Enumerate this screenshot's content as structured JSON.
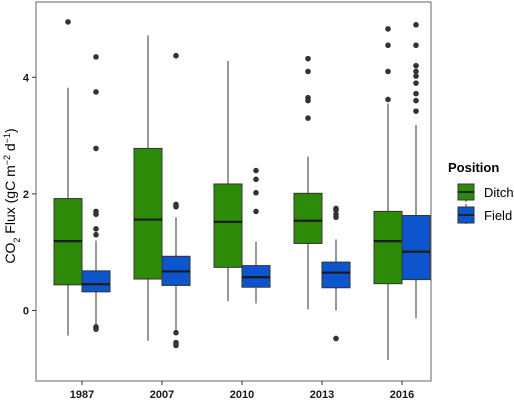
{
  "chart_data": {
    "type": "boxplot",
    "title": "",
    "xlabel": "",
    "ylabel": {
      "prefix": "CO",
      "sub": "2",
      "middle": " Flux (gC m",
      "sup1": "−2",
      "middle2": " d",
      "sup2": "−1",
      "suffix": ")"
    },
    "ylim": [
      -1.25,
      5.2
    ],
    "yticks": [
      0,
      2,
      4
    ],
    "grid": false,
    "legend_position": "right",
    "legend_title": "Position",
    "categories": [
      "1987",
      "2007",
      "2010",
      "2013",
      "2016"
    ],
    "series": [
      {
        "name": "Ditch",
        "color": "#2e8b0a",
        "boxes": [
          {
            "min": -0.43,
            "q1": 0.44,
            "median": 1.19,
            "q3": 1.92,
            "max": 3.82,
            "outliers": [
              4.95
            ]
          },
          {
            "min": -0.52,
            "q1": 0.54,
            "median": 1.56,
            "q3": 2.78,
            "max": 4.72,
            "outliers": []
          },
          {
            "min": 0.16,
            "q1": 0.74,
            "median": 1.52,
            "q3": 2.17,
            "max": 4.28,
            "outliers": []
          },
          {
            "min": 0.02,
            "q1": 1.15,
            "median": 1.54,
            "q3": 2.01,
            "max": 2.64,
            "outliers": [
              3.3,
              3.6,
              3.65,
              4.1,
              4.32
            ]
          },
          {
            "min": -0.85,
            "q1": 0.46,
            "median": 1.19,
            "q3": 1.7,
            "max": 3.55,
            "outliers": [
              3.62,
              4.1,
              4.55,
              4.83
            ]
          }
        ]
      },
      {
        "name": "Field",
        "color": "#0d55cc",
        "boxes": [
          {
            "min": -0.36,
            "q1": 0.32,
            "median": 0.45,
            "q3": 0.68,
            "max": 1.2,
            "outliers": [
              -0.32,
              -0.28,
              1.3,
              1.4,
              1.65,
              1.7,
              2.78,
              3.75,
              4.35
            ]
          },
          {
            "min": -0.33,
            "q1": 0.43,
            "median": 0.67,
            "q3": 0.93,
            "max": 1.6,
            "outliers": [
              -0.38,
              -0.55,
              -0.6,
              1.78,
              1.82,
              4.37
            ]
          },
          {
            "min": 0.12,
            "q1": 0.4,
            "median": 0.57,
            "q3": 0.77,
            "max": 1.18,
            "outliers": [
              1.7,
              2.02,
              2.25,
              2.4
            ]
          },
          {
            "min": 0.0,
            "q1": 0.39,
            "median": 0.65,
            "q3": 0.83,
            "max": 1.22,
            "outliers": [
              -0.48,
              1.6,
              1.65,
              1.72,
              1.75
            ]
          },
          {
            "min": -0.13,
            "q1": 0.53,
            "median": 1.01,
            "q3": 1.63,
            "max": 3.18,
            "outliers": [
              3.42,
              3.6,
              3.72,
              3.9,
              4.02,
              4.1,
              4.2,
              4.55,
              4.9
            ]
          }
        ]
      }
    ]
  }
}
